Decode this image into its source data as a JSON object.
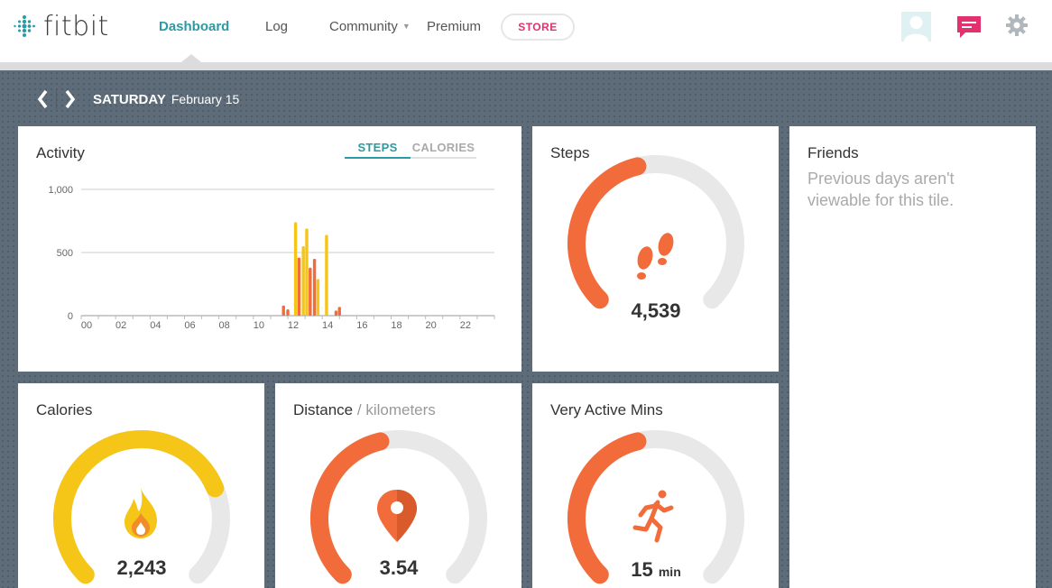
{
  "brand": {
    "name": "fitbit"
  },
  "nav": {
    "dashboard": "Dashboard",
    "log": "Log",
    "community": "Community",
    "premium": "Premium",
    "store": "STORE"
  },
  "datebar": {
    "day": "SATURDAY",
    "date": "February 15"
  },
  "activity": {
    "title": "Activity",
    "tabs": {
      "steps": "STEPS",
      "calories": "CALORIES"
    },
    "chart_data": {
      "type": "bar",
      "y_ticks": [
        "1,000",
        "500",
        "0"
      ],
      "ylim": [
        0,
        1000
      ],
      "x_ticks": [
        "00",
        "02",
        "04",
        "06",
        "08",
        "10",
        "12",
        "14",
        "16",
        "18",
        "20",
        "22"
      ],
      "xlim": [
        0,
        24
      ],
      "grid": true,
      "bars": [
        {
          "x": 11.75,
          "y": 80,
          "color": "#f26b3a"
        },
        {
          "x": 12.0,
          "y": 50,
          "color": "#f26b3a"
        },
        {
          "x": 12.45,
          "y": 740,
          "color": "#f5c518"
        },
        {
          "x": 12.65,
          "y": 460,
          "color": "#f26b3a"
        },
        {
          "x": 12.9,
          "y": 550,
          "color": "#f5c518"
        },
        {
          "x": 13.1,
          "y": 690,
          "color": "#f5c518"
        },
        {
          "x": 13.3,
          "y": 380,
          "color": "#f26b3a"
        },
        {
          "x": 13.55,
          "y": 450,
          "color": "#f26b3a"
        },
        {
          "x": 13.75,
          "y": 290,
          "color": "#f5c518"
        },
        {
          "x": 14.25,
          "y": 640,
          "color": "#f5c518"
        },
        {
          "x": 14.8,
          "y": 40,
          "color": "#f26b3a"
        },
        {
          "x": 15.0,
          "y": 70,
          "color": "#f26b3a"
        }
      ]
    }
  },
  "steps": {
    "title": "Steps",
    "value": "4,539",
    "progress": 0.45
  },
  "friends": {
    "title": "Friends",
    "message": "Previous days aren't viewable for this tile."
  },
  "calories": {
    "title": "Calories",
    "value": "2,243",
    "progress": 0.75
  },
  "distance": {
    "title": "Distance",
    "unit": "/ kilometers",
    "value": "3.54",
    "progress": 0.45
  },
  "active_mins": {
    "title": "Very Active Mins",
    "value": "15",
    "unit": "min",
    "progress": 0.45
  },
  "colors": {
    "accent": "#2a9aa5",
    "orange": "#f26b3a",
    "yellow": "#f5c518",
    "store": "#e5306f",
    "gauge_bg": "#e8e8e8"
  }
}
